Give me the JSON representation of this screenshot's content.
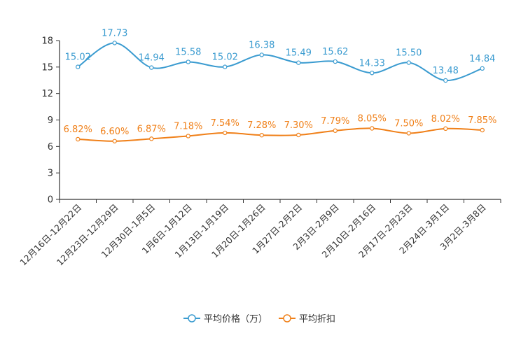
{
  "chart_data": {
    "type": "line",
    "categories": [
      "12月16日-12月22日",
      "12月23日-12月29日",
      "12月30日-1月5日",
      "1月6日-1月12日",
      "1月13日-1月19日",
      "1月20日-1月26日",
      "1月27日-2月2日",
      "2月3日-2月9日",
      "2月10日-2月16日",
      "2月17日-2月23日",
      "2月24日-3月1日",
      "3月2日-3月8日"
    ],
    "series": [
      {
        "name": "平均价格（万）",
        "color": "#3a9bd0",
        "values": [
          15.02,
          17.73,
          14.94,
          15.58,
          15.02,
          16.38,
          15.49,
          15.62,
          14.33,
          15.5,
          13.48,
          14.84
        ],
        "labels": [
          "15.02",
          "17.73",
          "14.94",
          "15.58",
          "15.02",
          "16.38",
          "15.49",
          "15.62",
          "14.33",
          "15.50",
          "13.48",
          "14.84"
        ]
      },
      {
        "name": "平均折扣",
        "color": "#f08019",
        "values": [
          6.82,
          6.6,
          6.87,
          7.18,
          7.54,
          7.28,
          7.3,
          7.79,
          8.05,
          7.5,
          8.02,
          7.85
        ],
        "labels": [
          "6.82%",
          "6.60%",
          "6.87%",
          "7.18%",
          "7.54%",
          "7.28%",
          "7.30%",
          "7.79%",
          "8.05%",
          "7.50%",
          "8.02%",
          "7.85%"
        ]
      }
    ],
    "yticks": [
      "0",
      "3",
      "6",
      "9",
      "12",
      "15",
      "18"
    ],
    "ylim": [
      0,
      18
    ],
    "title": "",
    "xlabel": "",
    "ylabel": "",
    "legend_position": "bottom-center",
    "grid": false
  }
}
